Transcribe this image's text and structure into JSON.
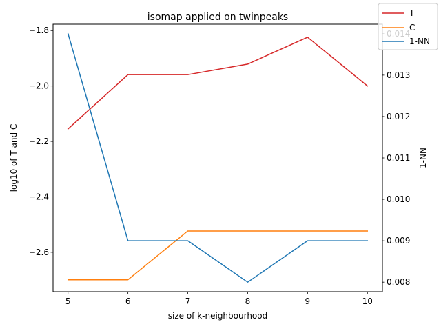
{
  "chart_data": {
    "type": "line",
    "title": "isomap applied on twinpeaks",
    "xlabel": "size of k-neighbourhood",
    "ylabel_left": "log10 of T and C",
    "ylabel_right": "1-NN",
    "x": [
      5,
      6,
      7,
      8,
      9,
      10
    ],
    "x_ticks": [
      "5",
      "6",
      "7",
      "8",
      "9",
      "10"
    ],
    "xlim": [
      4.75,
      10.25
    ],
    "ylim_left": [
      -2.742,
      -1.777
    ],
    "ylim_right": [
      0.00777,
      0.01423
    ],
    "y_ticks_left": [
      "−1.8",
      "−2.0",
      "−2.2",
      "−2.4",
      "−2.6"
    ],
    "y_ticks_left_values": [
      -1.8,
      -2.0,
      -2.2,
      -2.4,
      -2.6
    ],
    "y_ticks_right": [
      "0.008",
      "0.009",
      "0.010",
      "0.011",
      "0.012",
      "0.013",
      "0.014"
    ],
    "y_ticks_right_values": [
      0.008,
      0.009,
      0.01,
      0.011,
      0.012,
      0.013,
      0.014
    ],
    "series": [
      {
        "name": "T",
        "axis": "left",
        "color": "#d62728",
        "values": [
          -2.155,
          -1.959,
          -1.959,
          -1.921,
          -1.824,
          -2.0
        ]
      },
      {
        "name": "C",
        "axis": "left",
        "color": "#ff7f0e",
        "values": [
          -2.699,
          -2.699,
          -2.523,
          -2.523,
          -2.523,
          -2.523
        ]
      },
      {
        "name": "1-NN",
        "axis": "right",
        "color": "#1f77b4",
        "values": [
          0.014,
          0.009,
          0.009,
          0.008,
          0.009,
          0.009
        ]
      }
    ],
    "legend": {
      "location": "top-right",
      "entries": [
        "T",
        "C",
        "1-NN"
      ]
    },
    "grid": false
  }
}
